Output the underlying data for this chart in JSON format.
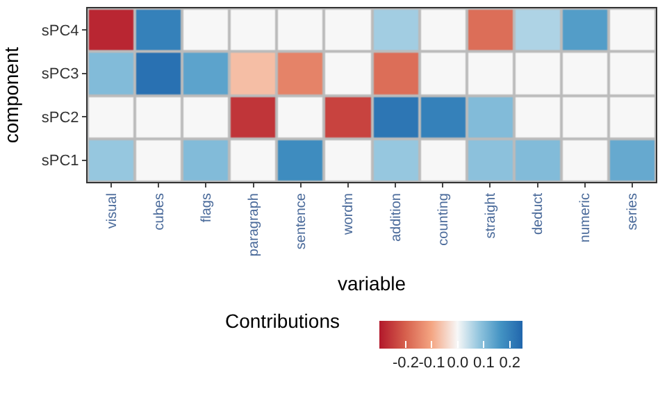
{
  "chart_data": {
    "type": "heatmap",
    "xlabel": "variable",
    "ylabel": "component",
    "clabel": "Contributions",
    "categories": [
      "visual",
      "cubes",
      "flags",
      "paragraph",
      "sentence",
      "wordm",
      "addition",
      "counting",
      "straight",
      "deduct",
      "numeric",
      "series"
    ],
    "y_categories": [
      "sPC4",
      "sPC3",
      "sPC2",
      "sPC1"
    ],
    "cells": [
      [
        -0.28,
        0.2,
        0,
        0,
        0,
        0,
        0.07,
        0,
        -0.18,
        0.06,
        0.15,
        0
      ],
      [
        0.1,
        0.23,
        0.14,
        -0.07,
        -0.15,
        0,
        -0.18,
        0,
        0,
        0,
        0,
        0
      ],
      [
        0,
        0,
        0,
        -0.26,
        0,
        -0.24,
        0.22,
        0.2,
        0.1,
        0,
        0,
        0
      ],
      [
        0.08,
        0,
        0.1,
        0,
        0.18,
        0,
        0.08,
        0,
        0.09,
        0.1,
        0,
        0.13
      ]
    ],
    "clim": [
      -0.3,
      0.25
    ],
    "cticks": [
      -0.2,
      -0.1,
      {
        "value": 0,
        "label": "0.0"
      },
      0.1,
      0.2
    ]
  }
}
